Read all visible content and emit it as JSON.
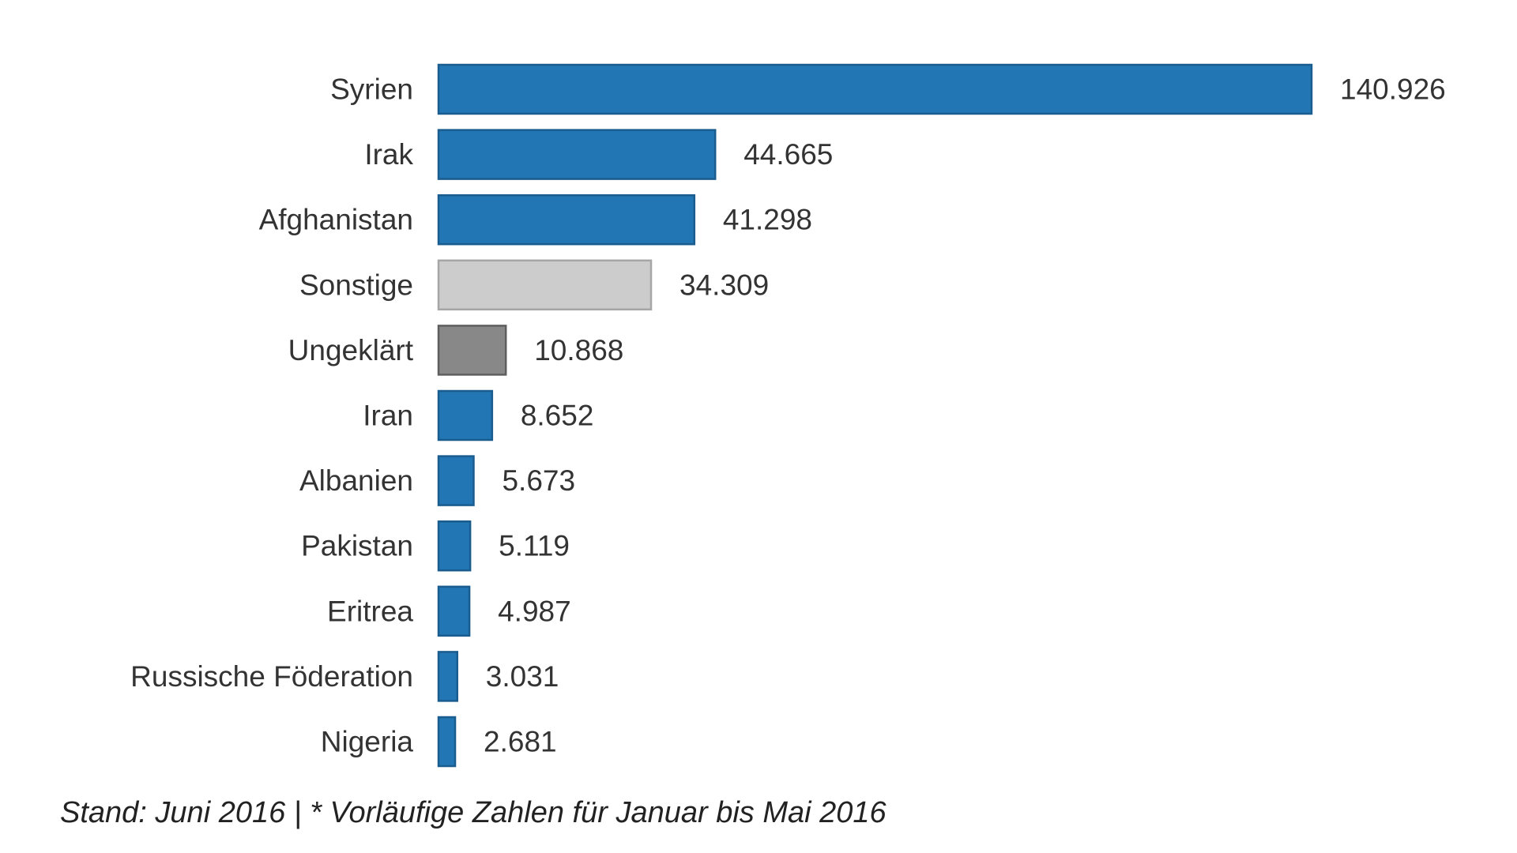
{
  "chart_data": {
    "type": "bar",
    "orientation": "horizontal",
    "categories": [
      "Syrien",
      "Irak",
      "Afghanistan",
      "Sonstige",
      "Ungeklärt",
      "Iran",
      "Albanien",
      "Pakistan",
      "Eritrea",
      "Russische Föderation",
      "Nigeria"
    ],
    "values": [
      140926,
      44665,
      41298,
      34309,
      10868,
      8652,
      5673,
      5119,
      4987,
      3031,
      2681
    ],
    "value_labels": [
      "140.926",
      "44.665",
      "41.298",
      "34.309",
      "10.868",
      "8.652",
      "5.673",
      "5.119",
      "4.987",
      "3.031",
      "2.681"
    ],
    "bar_colors": [
      "#2276b4",
      "#2276b4",
      "#2276b4",
      "#cccccc",
      "#888888",
      "#2276b4",
      "#2276b4",
      "#2276b4",
      "#2276b4",
      "#2276b4",
      "#2276b4"
    ],
    "bar_stroke_colors": [
      "#1a5c8e",
      "#1a5c8e",
      "#1a5c8e",
      "#a6a6a6",
      "#5e5e5e",
      "#1a5c8e",
      "#1a5c8e",
      "#1a5c8e",
      "#1a5c8e",
      "#1a5c8e",
      "#1a5c8e"
    ],
    "title": "",
    "xlabel": "",
    "ylabel": "",
    "grid": false,
    "legend": "none"
  },
  "footnote": "Stand: Juni 2016 | * Vorläufige Zahlen für Januar bis Mai 2016"
}
